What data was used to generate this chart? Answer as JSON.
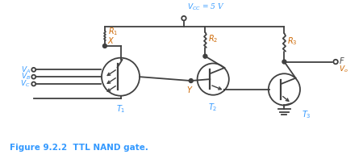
{
  "title": "Figure 9.2.2  TTL NAND gate.",
  "vcc_label": "$V_{CC}$ = 5 V",
  "bg_color": "#ffffff",
  "cyan_color": "#3399FF",
  "dark_color": "#404040",
  "orange_color": "#CC6600"
}
